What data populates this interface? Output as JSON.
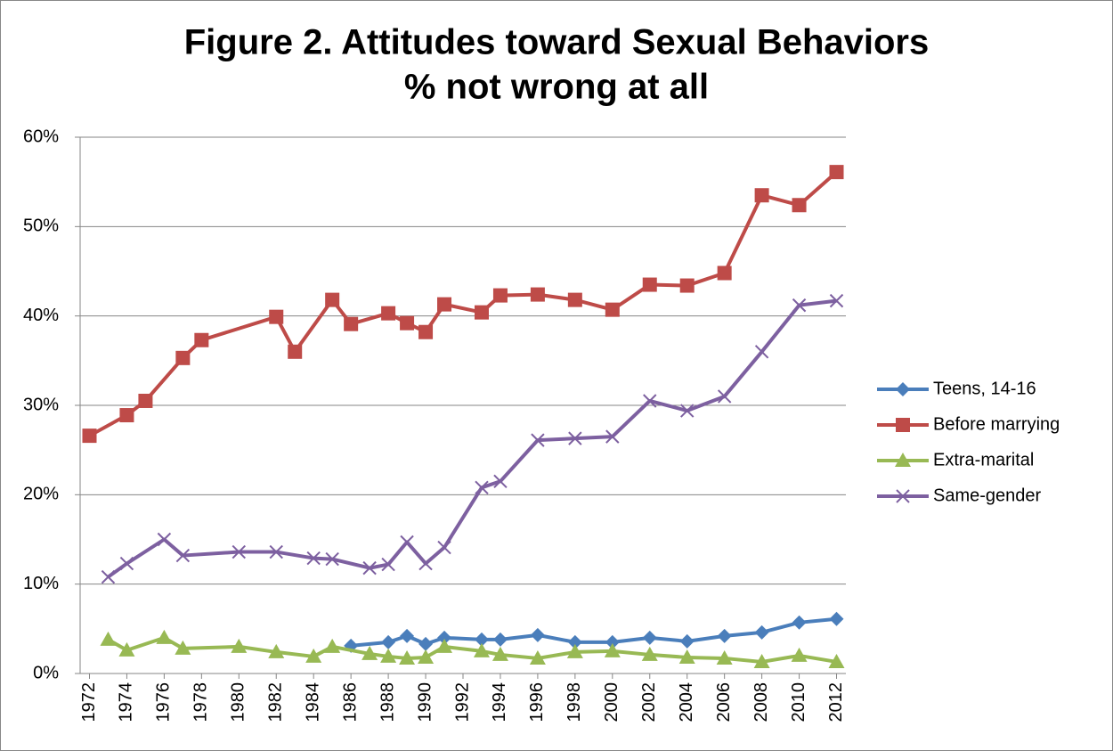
{
  "chart_data": {
    "type": "line",
    "title": [
      "Figure 2. Attitudes toward Sexual Behaviors",
      "% not wrong at all"
    ],
    "xlim": [
      1971.5,
      2012.5
    ],
    "xticks": [
      1972,
      1974,
      1976,
      1978,
      1980,
      1982,
      1984,
      1986,
      1988,
      1990,
      1992,
      1994,
      1996,
      1998,
      2000,
      2002,
      2004,
      2006,
      2008,
      2010,
      2012
    ],
    "ylim": [
      0,
      60
    ],
    "yticks": [
      {
        "value": 0,
        "label": "0%"
      },
      {
        "value": 10,
        "label": "10%"
      },
      {
        "value": 20,
        "label": "20%"
      },
      {
        "value": 30,
        "label": "30%"
      },
      {
        "value": 40,
        "label": "40%"
      },
      {
        "value": 50,
        "label": "50%"
      },
      {
        "value": 60,
        "label": "60%"
      }
    ],
    "grid": true,
    "legend": "right",
    "series": [
      {
        "name": "Teens, 14-16",
        "color": "#4a7ebb",
        "marker": "diamond",
        "x": [
          1986,
          1988,
          1989,
          1990,
          1991,
          1993,
          1994,
          1996,
          1998,
          2000,
          2002,
          2004,
          2006,
          2008,
          2010,
          2012
        ],
        "values": [
          3.1,
          3.5,
          4.2,
          3.3,
          4.0,
          3.8,
          3.8,
          4.3,
          3.5,
          3.5,
          4.0,
          3.6,
          4.2,
          4.6,
          5.7,
          6.1
        ]
      },
      {
        "name": "Before marrying",
        "color": "#be4b48",
        "marker": "square",
        "x": [
          1972,
          1974,
          1975,
          1977,
          1978,
          1982,
          1983,
          1985,
          1986,
          1988,
          1989,
          1990,
          1991,
          1993,
          1994,
          1996,
          1998,
          2000,
          2002,
          2004,
          2006,
          2008,
          2010,
          2012
        ],
        "values": [
          26.6,
          28.9,
          30.5,
          35.3,
          37.3,
          39.9,
          36.0,
          41.8,
          39.1,
          40.3,
          39.2,
          38.2,
          41.3,
          40.4,
          42.3,
          42.4,
          41.8,
          40.7,
          43.5,
          43.4,
          44.8,
          53.5,
          52.4,
          56.1
        ]
      },
      {
        "name": "Extra-marital",
        "color": "#98b954",
        "marker": "triangle",
        "x": [
          1973,
          1974,
          1976,
          1977,
          1980,
          1982,
          1984,
          1985,
          1987,
          1988,
          1989,
          1990,
          1991,
          1993,
          1994,
          1996,
          1998,
          2000,
          2002,
          2004,
          2006,
          2008,
          2010,
          2012
        ],
        "values": [
          3.8,
          2.6,
          4.0,
          2.8,
          3.0,
          2.4,
          1.9,
          3.0,
          2.2,
          1.9,
          1.7,
          1.8,
          3.0,
          2.5,
          2.1,
          1.7,
          2.4,
          2.5,
          2.1,
          1.8,
          1.7,
          1.3,
          2.0,
          1.3
        ]
      },
      {
        "name": "Same-gender",
        "color": "#7d60a0",
        "marker": "x",
        "x": [
          1973,
          1974,
          1976,
          1977,
          1980,
          1982,
          1984,
          1985,
          1987,
          1988,
          1989,
          1990,
          1991,
          1993,
          1994,
          1996,
          1998,
          2000,
          2002,
          2004,
          2006,
          2008,
          2010,
          2012
        ],
        "values": [
          10.8,
          12.3,
          15.0,
          13.2,
          13.6,
          13.6,
          12.9,
          12.8,
          11.8,
          12.2,
          14.7,
          12.3,
          14.1,
          20.8,
          21.5,
          26.1,
          26.3,
          26.5,
          30.5,
          29.4,
          31.0,
          36.0,
          41.2,
          41.7
        ]
      }
    ]
  }
}
